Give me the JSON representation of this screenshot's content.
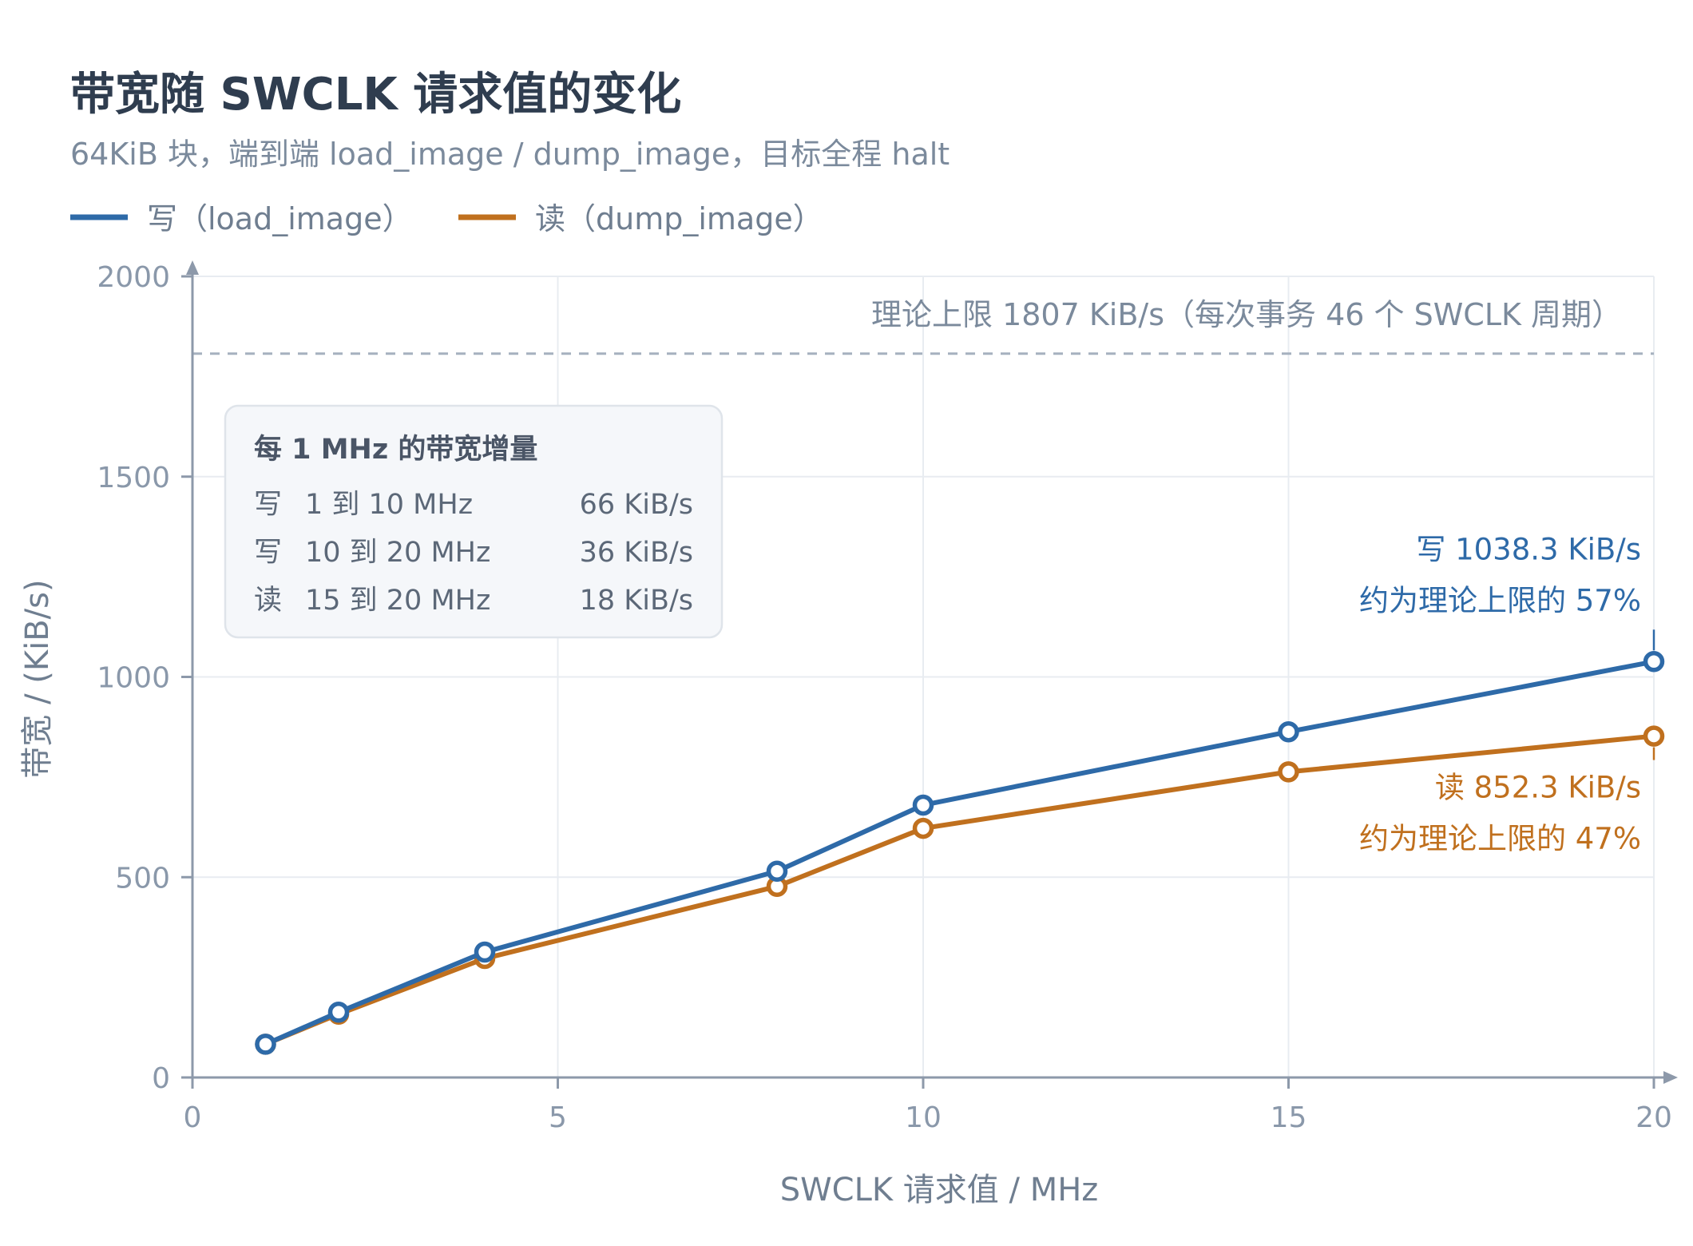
{
  "chart_data": {
    "type": "line",
    "title": "带宽随 SWCLK 请求值的变化",
    "subtitle": "64KiB 块，端到端 load_image / dump_image，目标全程 halt",
    "xlabel": "SWCLK 请求值 / MHz",
    "ylabel": "带宽 / (KiB/s)",
    "xlim": [
      0,
      20
    ],
    "ylim": [
      0,
      2000
    ],
    "xticks": [
      0,
      5,
      10,
      15,
      20
    ],
    "yticks": [
      0,
      500,
      1000,
      1500,
      2000
    ],
    "grid": true,
    "legend_position": "top-left",
    "series": [
      {
        "name": "写（load_image）",
        "color": "#2e6aa8",
        "x": [
          1,
          2,
          4,
          8,
          10,
          15,
          20
        ],
        "y": [
          83,
          163,
          313,
          515,
          680,
          863,
          1038.3
        ]
      },
      {
        "name": "读（dump_image）",
        "color": "#c0701e",
        "x": [
          1,
          2,
          4,
          8,
          10,
          15,
          20
        ],
        "y": [
          83,
          158,
          297,
          477,
          622,
          763,
          852.3
        ]
      }
    ],
    "reference_line": {
      "value": 1807,
      "label": "理论上限 1807 KiB/s（每次事务 46 个 SWCLK 周期）",
      "color": "#a6b1bf"
    },
    "annotations": {
      "write": {
        "line1": "写 1038.3 KiB/s",
        "line2": "约为理论上限的 57%"
      },
      "read": {
        "line1": "读 852.3 KiB/s",
        "line2": "约为理论上限的 47%"
      }
    },
    "info_box": {
      "title": "每 1 MHz 的带宽增量",
      "rows": [
        {
          "kind": "写",
          "range": "1 到 10 MHz",
          "value": "66 KiB/s"
        },
        {
          "kind": "写",
          "range": "10 到 20 MHz",
          "value": "36 KiB/s"
        },
        {
          "kind": "读",
          "range": "15 到 20 MHz",
          "value": "18 KiB/s"
        }
      ]
    }
  }
}
